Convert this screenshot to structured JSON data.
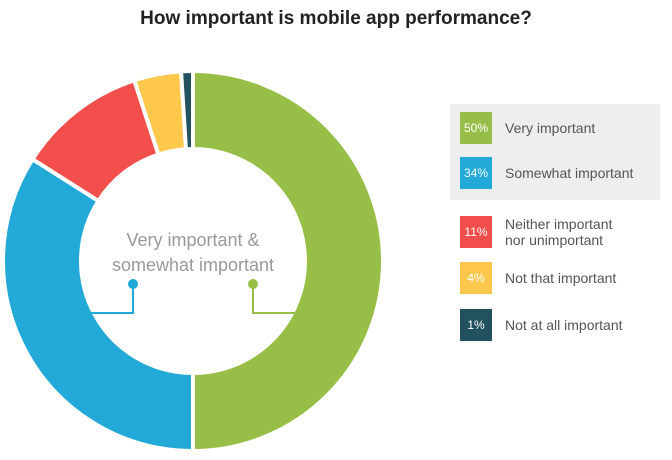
{
  "chart_data": {
    "type": "pie",
    "title": "How important is mobile app performance?",
    "center_label": "Very important &\nsomewhat important",
    "categories": [
      "Very important",
      "Somewhat important",
      "Neither important nor unimportant",
      "Not that important",
      "Not at all important"
    ],
    "values": [
      50,
      34,
      11,
      4,
      1
    ],
    "value_labels": [
      "50%",
      "34%",
      "11%",
      "4%",
      "1%"
    ],
    "legend_labels": [
      "Very important",
      "Somewhat important",
      "Neither important\nnor unimportant",
      "Not that important",
      "Not at all important"
    ],
    "colors": [
      "#97bf47",
      "#22a9d8",
      "#f24e4b",
      "#fdc84c",
      "#22515f"
    ],
    "legend": "right",
    "highlighted": [
      "Very important",
      "Somewhat important"
    ]
  }
}
